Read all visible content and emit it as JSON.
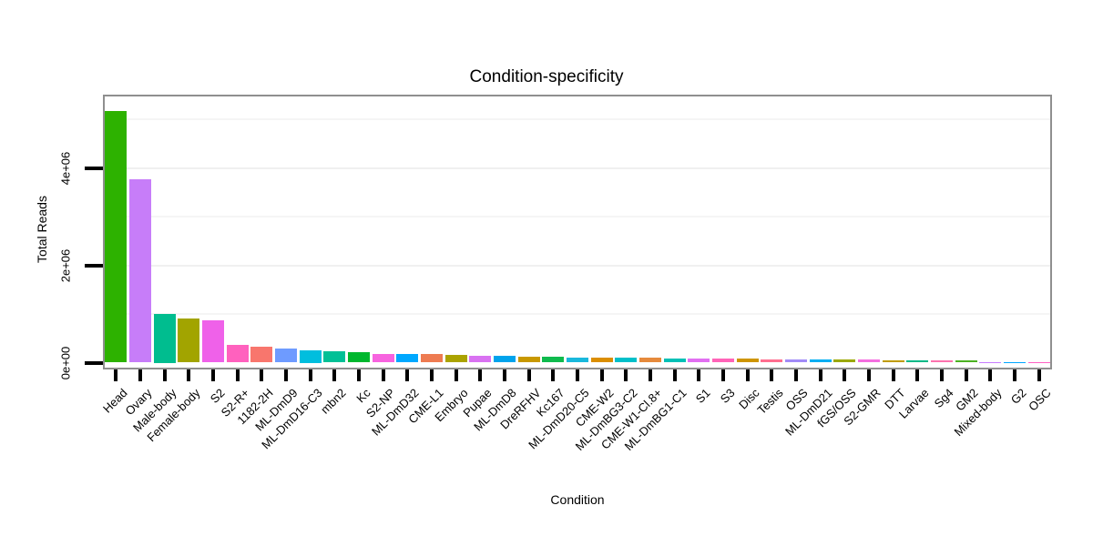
{
  "title": "Condition-specificity",
  "chart_data": {
    "type": "bar",
    "title": "Condition-specificity",
    "xlabel": "Condition",
    "ylabel": "Total Reads",
    "ylim": [
      0,
      5490000
    ],
    "grid": "faint horizontal gridlines on white panel, gray panel border",
    "legend_position": "none",
    "bar_order": "descending by value",
    "yticks": [
      {
        "value": 0,
        "label": "0e+00"
      },
      {
        "value": 2000000,
        "label": "2e+06"
      },
      {
        "value": 4000000,
        "label": "4e+06"
      }
    ],
    "minor_gridlines": [
      1000000,
      3000000,
      5000000
    ],
    "major_gridlines": [
      2000000,
      4000000
    ],
    "categories": [
      "Head",
      "Ovary",
      "Male-body",
      "Female-body",
      "S2",
      "S2-R+",
      "1182-2H",
      "ML-DmD9",
      "ML-DmD16-C3",
      "mbn2",
      "Kc",
      "S2-NP",
      "ML-DmD32",
      "CME-L1",
      "Embryo",
      "Pupae",
      "ML-DmD8",
      "DreRFHV",
      "Kc167",
      "ML-DmD20-C5",
      "CME-W2",
      "ML-DmBG3-C2",
      "CME-W1-Cl.8+",
      "ML-DmBG1-C1",
      "S1",
      "S3",
      "Disc",
      "Testis",
      "OSS",
      "ML-DmD21",
      "fGS/OSS",
      "S2-GMR",
      "DTT",
      "Larvae",
      "Sg4",
      "GM2",
      "Mixed-body",
      "G2",
      "OSC"
    ],
    "values": [
      5170000,
      3760000,
      1000000,
      910000,
      870000,
      360000,
      330000,
      290000,
      250000,
      230000,
      210000,
      185000,
      180000,
      175000,
      160000,
      140000,
      135000,
      130000,
      120000,
      110000,
      105000,
      100000,
      95000,
      90000,
      85000,
      80000,
      75000,
      72000,
      68000,
      62000,
      60000,
      58000,
      55000,
      52000,
      50000,
      48000,
      6000,
      4000,
      2000
    ],
    "colors": [
      "#2DB200",
      "#C77DF9",
      "#00BD8F",
      "#A2A400",
      "#EF61E9",
      "#FF61BE",
      "#F8766D",
      "#6E9BFF",
      "#00BEDE",
      "#00C096",
      "#00B72E",
      "#F763DF",
      "#00A8FF",
      "#EE7B51",
      "#ABA300",
      "#D972F2",
      "#00A3EC",
      "#C89800",
      "#0FBA4D",
      "#19B8DC",
      "#DB8E00",
      "#00BFC9",
      "#E68A3C",
      "#00C0B6",
      "#E16FF1",
      "#FF64B8",
      "#CE9500",
      "#FF6E8F",
      "#A18BF7",
      "#00AEF2",
      "#9BA800",
      "#F46FE0",
      "#C09B00",
      "#00B887",
      "#FC73AE",
      "#4CB122",
      "#C77CFF",
      "#00A5FF",
      "#FF61C3"
    ]
  },
  "style_colors": {
    "panel_border": "#8F8F8F",
    "tick_mark": "#000000",
    "grid_minor": "#F5F5F5",
    "grid_major": "#F0F0F0",
    "background": "#FFFFFF",
    "text": "#000000"
  }
}
